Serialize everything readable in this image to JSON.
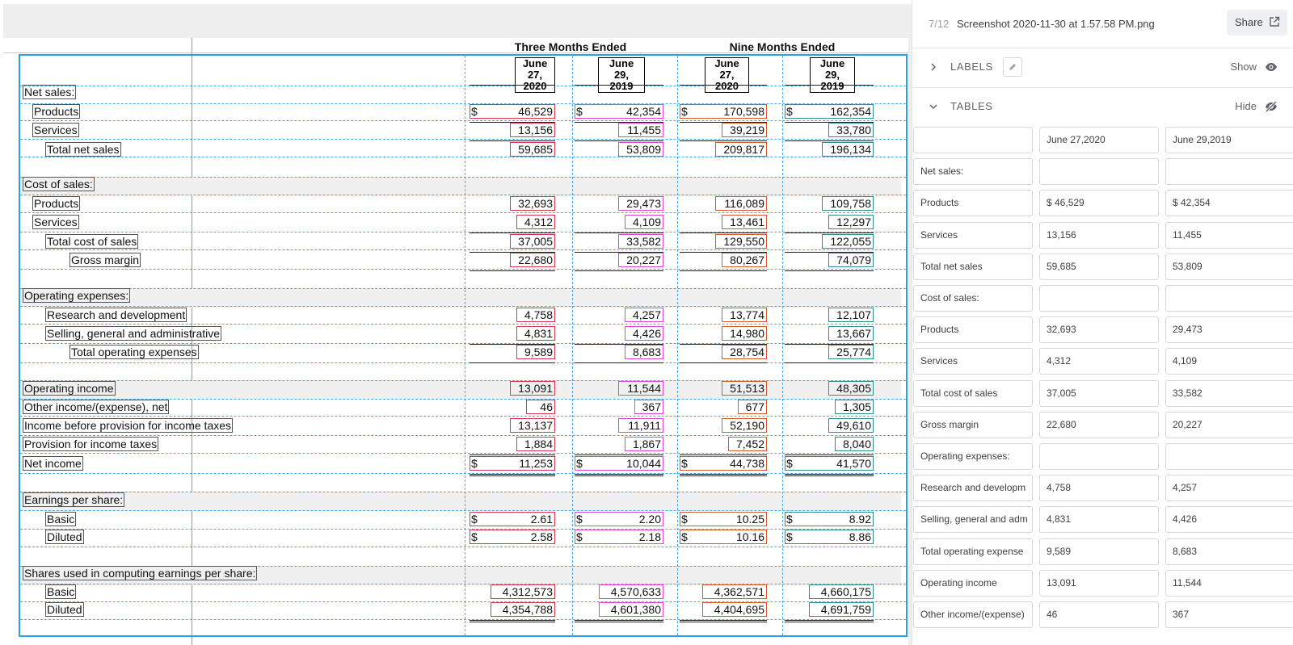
{
  "document": {
    "group_headers": [
      "Three Months Ended",
      "Nine Months Ended"
    ],
    "column_headers": [
      {
        "line1": "June 27,",
        "line2": "2020"
      },
      {
        "line1": "June 29,",
        "line2": "2019"
      },
      {
        "line1": "June 27,",
        "line2": "2020"
      },
      {
        "line1": "June 29,",
        "line2": "2019"
      }
    ],
    "currency_symbol": "$",
    "rows": [
      {
        "label": "Net sales:",
        "values": []
      },
      {
        "label": "Products",
        "values": [
          "46,529",
          "42,354",
          "170,598",
          "162,354"
        ],
        "currency": true
      },
      {
        "label": "Services",
        "values": [
          "13,156",
          "11,455",
          "39,219",
          "33,780"
        ]
      },
      {
        "label": "Total net sales",
        "values": [
          "59,685",
          "53,809",
          "209,817",
          "196,134"
        ]
      },
      {
        "label": "Cost of sales:",
        "values": []
      },
      {
        "label": "Products",
        "values": [
          "32,693",
          "29,473",
          "116,089",
          "109,758"
        ]
      },
      {
        "label": "Services",
        "values": [
          "4,312",
          "4,109",
          "13,461",
          "12,297"
        ]
      },
      {
        "label": "Total cost of sales",
        "values": [
          "37,005",
          "33,582",
          "129,550",
          "122,055"
        ]
      },
      {
        "label": "Gross margin",
        "values": [
          "22,680",
          "20,227",
          "80,267",
          "74,079"
        ]
      },
      {
        "label": "Operating expenses:",
        "values": []
      },
      {
        "label": "Research and development",
        "values": [
          "4,758",
          "4,257",
          "13,774",
          "12,107"
        ]
      },
      {
        "label": "Selling, general and administrative",
        "values": [
          "4,831",
          "4,426",
          "14,980",
          "13,667"
        ]
      },
      {
        "label": "Total operating expenses",
        "values": [
          "9,589",
          "8,683",
          "28,754",
          "25,774"
        ]
      },
      {
        "label": "Operating income",
        "values": [
          "13,091",
          "11,544",
          "51,513",
          "48,305"
        ]
      },
      {
        "label": "Other income/(expense), net",
        "values": [
          "46",
          "367",
          "677",
          "1,305"
        ]
      },
      {
        "label": "Income before provision for income taxes",
        "values": [
          "13,137",
          "11,911",
          "52,190",
          "49,610"
        ]
      },
      {
        "label": "Provision for income taxes",
        "values": [
          "1,884",
          "1,867",
          "7,452",
          "8,040"
        ]
      },
      {
        "label": "Net income",
        "values": [
          "11,253",
          "10,044",
          "44,738",
          "41,570"
        ],
        "currency": true
      },
      {
        "label": "Earnings per share:",
        "values": []
      },
      {
        "label": "Basic",
        "values": [
          "2.61",
          "2.20",
          "10.25",
          "8.92"
        ],
        "currency": true
      },
      {
        "label": "Diluted",
        "values": [
          "2.58",
          "2.18",
          "10.16",
          "8.86"
        ],
        "currency": true
      },
      {
        "label": "Shares used in computing earnings per share:",
        "values": []
      },
      {
        "label": "Basic",
        "values": [
          "4,312,573",
          "4,570,633",
          "4,362,571",
          "4,660,175"
        ]
      },
      {
        "label": "Diluted",
        "values": [
          "4,354,788",
          "4,601,380",
          "4,404,695",
          "4,691,759"
        ]
      }
    ]
  },
  "panel": {
    "counter": "7/12",
    "filename": "Screenshot 2020-11-30 at 1.57.58 PM.png",
    "share_label": "Share",
    "labels_section": {
      "title": "LABELS",
      "action": "Show"
    },
    "tables_section": {
      "title": "TABLES",
      "action": "Hide"
    },
    "table_header": [
      "",
      "June 27,2020",
      "June 29,2019"
    ],
    "table_rows": [
      [
        "Net sales:",
        "",
        ""
      ],
      [
        "Products",
        "$ 46,529",
        "$ 42,354"
      ],
      [
        "Services",
        "13,156",
        "11,455"
      ],
      [
        "Total net sales",
        "59,685",
        "53,809"
      ],
      [
        "Cost of sales:",
        "",
        ""
      ],
      [
        "Products",
        "32,693",
        "29,473"
      ],
      [
        "Services",
        "4,312",
        "4,109"
      ],
      [
        "Total cost of sales",
        "37,005",
        "33,582"
      ],
      [
        "Gross margin",
        "22,680",
        "20,227"
      ],
      [
        "Operating expenses:",
        "",
        ""
      ],
      [
        "Research and developm",
        "4,758",
        "4,257"
      ],
      [
        "Selling, general and adm",
        "4,831",
        "4,426"
      ],
      [
        "Total operating expense",
        "9,589",
        "8,683"
      ],
      [
        "Operating income",
        "13,091",
        "11,544"
      ],
      [
        "Other income/(expense)",
        "46",
        "367"
      ]
    ]
  }
}
